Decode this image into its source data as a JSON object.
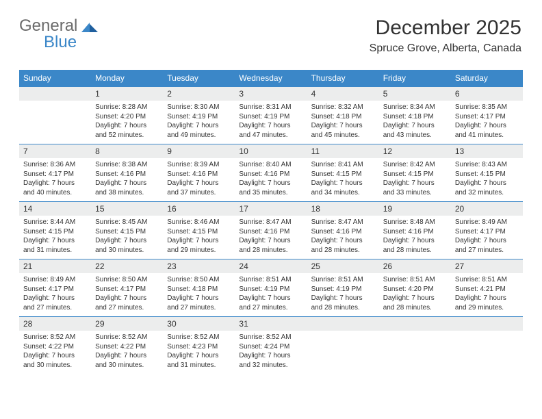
{
  "logo": {
    "part1": "General",
    "part2": "Blue"
  },
  "header": {
    "title": "December 2025",
    "location": "Spruce Grove, Alberta, Canada"
  },
  "colors": {
    "header_bg": "#3b87c8",
    "header_text": "#ffffff",
    "daynum_bg": "#eceded",
    "border": "#3b87c8",
    "page_bg": "#ffffff",
    "text": "#333333"
  },
  "dayNames": [
    "Sunday",
    "Monday",
    "Tuesday",
    "Wednesday",
    "Thursday",
    "Friday",
    "Saturday"
  ],
  "weeks": [
    [
      null,
      {
        "n": "1",
        "sr": "8:28 AM",
        "ss": "4:20 PM",
        "dl": "7 hours and 52 minutes."
      },
      {
        "n": "2",
        "sr": "8:30 AM",
        "ss": "4:19 PM",
        "dl": "7 hours and 49 minutes."
      },
      {
        "n": "3",
        "sr": "8:31 AM",
        "ss": "4:19 PM",
        "dl": "7 hours and 47 minutes."
      },
      {
        "n": "4",
        "sr": "8:32 AM",
        "ss": "4:18 PM",
        "dl": "7 hours and 45 minutes."
      },
      {
        "n": "5",
        "sr": "8:34 AM",
        "ss": "4:18 PM",
        "dl": "7 hours and 43 minutes."
      },
      {
        "n": "6",
        "sr": "8:35 AM",
        "ss": "4:17 PM",
        "dl": "7 hours and 41 minutes."
      }
    ],
    [
      {
        "n": "7",
        "sr": "8:36 AM",
        "ss": "4:17 PM",
        "dl": "7 hours and 40 minutes."
      },
      {
        "n": "8",
        "sr": "8:38 AM",
        "ss": "4:16 PM",
        "dl": "7 hours and 38 minutes."
      },
      {
        "n": "9",
        "sr": "8:39 AM",
        "ss": "4:16 PM",
        "dl": "7 hours and 37 minutes."
      },
      {
        "n": "10",
        "sr": "8:40 AM",
        "ss": "4:16 PM",
        "dl": "7 hours and 35 minutes."
      },
      {
        "n": "11",
        "sr": "8:41 AM",
        "ss": "4:15 PM",
        "dl": "7 hours and 34 minutes."
      },
      {
        "n": "12",
        "sr": "8:42 AM",
        "ss": "4:15 PM",
        "dl": "7 hours and 33 minutes."
      },
      {
        "n": "13",
        "sr": "8:43 AM",
        "ss": "4:15 PM",
        "dl": "7 hours and 32 minutes."
      }
    ],
    [
      {
        "n": "14",
        "sr": "8:44 AM",
        "ss": "4:15 PM",
        "dl": "7 hours and 31 minutes."
      },
      {
        "n": "15",
        "sr": "8:45 AM",
        "ss": "4:15 PM",
        "dl": "7 hours and 30 minutes."
      },
      {
        "n": "16",
        "sr": "8:46 AM",
        "ss": "4:15 PM",
        "dl": "7 hours and 29 minutes."
      },
      {
        "n": "17",
        "sr": "8:47 AM",
        "ss": "4:16 PM",
        "dl": "7 hours and 28 minutes."
      },
      {
        "n": "18",
        "sr": "8:47 AM",
        "ss": "4:16 PM",
        "dl": "7 hours and 28 minutes."
      },
      {
        "n": "19",
        "sr": "8:48 AM",
        "ss": "4:16 PM",
        "dl": "7 hours and 28 minutes."
      },
      {
        "n": "20",
        "sr": "8:49 AM",
        "ss": "4:17 PM",
        "dl": "7 hours and 27 minutes."
      }
    ],
    [
      {
        "n": "21",
        "sr": "8:49 AM",
        "ss": "4:17 PM",
        "dl": "7 hours and 27 minutes."
      },
      {
        "n": "22",
        "sr": "8:50 AM",
        "ss": "4:17 PM",
        "dl": "7 hours and 27 minutes."
      },
      {
        "n": "23",
        "sr": "8:50 AM",
        "ss": "4:18 PM",
        "dl": "7 hours and 27 minutes."
      },
      {
        "n": "24",
        "sr": "8:51 AM",
        "ss": "4:19 PM",
        "dl": "7 hours and 27 minutes."
      },
      {
        "n": "25",
        "sr": "8:51 AM",
        "ss": "4:19 PM",
        "dl": "7 hours and 28 minutes."
      },
      {
        "n": "26",
        "sr": "8:51 AM",
        "ss": "4:20 PM",
        "dl": "7 hours and 28 minutes."
      },
      {
        "n": "27",
        "sr": "8:51 AM",
        "ss": "4:21 PM",
        "dl": "7 hours and 29 minutes."
      }
    ],
    [
      {
        "n": "28",
        "sr": "8:52 AM",
        "ss": "4:22 PM",
        "dl": "7 hours and 30 minutes."
      },
      {
        "n": "29",
        "sr": "8:52 AM",
        "ss": "4:22 PM",
        "dl": "7 hours and 30 minutes."
      },
      {
        "n": "30",
        "sr": "8:52 AM",
        "ss": "4:23 PM",
        "dl": "7 hours and 31 minutes."
      },
      {
        "n": "31",
        "sr": "8:52 AM",
        "ss": "4:24 PM",
        "dl": "7 hours and 32 minutes."
      },
      null,
      null,
      null
    ]
  ],
  "labels": {
    "sunrise": "Sunrise:",
    "sunset": "Sunset:",
    "daylight": "Daylight:"
  }
}
